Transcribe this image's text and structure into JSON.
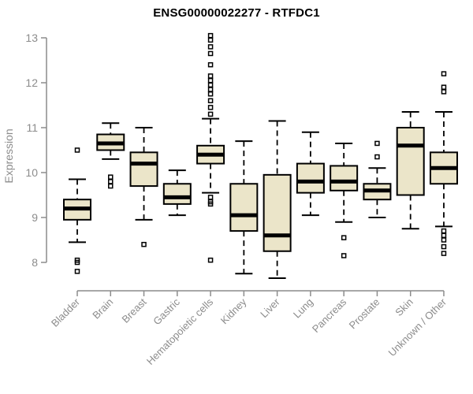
{
  "title": "ENSG00000022277 - RTFDC1",
  "colors": {
    "background": "#ffffff",
    "box_fill": "#EBE5C9",
    "box_stroke": "#000000",
    "median": "#000000",
    "whisker": "#000000",
    "outlier": "#000000",
    "axis": "#8C8C8C",
    "tick_label": "#8C8C8C",
    "title": "#000000"
  },
  "chart_data": {
    "type": "boxplot",
    "title": "ENSG00000022277 - RTFDC1",
    "xlabel": "",
    "ylabel": "Expression",
    "ylim": [
      7.5,
      13.2
    ],
    "yticks": [
      8,
      9,
      10,
      11,
      12,
      13
    ],
    "grid": false,
    "legend": "none",
    "categories": [
      "Bladder",
      "Brain",
      "Breast",
      "Gastric",
      "Hematopoietic cells",
      "Kidney",
      "Liver",
      "Lung",
      "Pancreas",
      "Prostate",
      "Skin",
      "Unknown / Other"
    ],
    "boxes": [
      {
        "category": "Bladder",
        "low": 8.45,
        "q1": 8.95,
        "median": 9.2,
        "q3": 9.4,
        "high": 9.85,
        "outliers": [
          10.5,
          8.05,
          8.0,
          7.8
        ]
      },
      {
        "category": "Brain",
        "low": 10.3,
        "q1": 10.5,
        "median": 10.65,
        "q3": 10.85,
        "high": 11.1,
        "outliers": [
          9.9,
          9.8,
          9.7
        ]
      },
      {
        "category": "Breast",
        "low": 8.95,
        "q1": 9.7,
        "median": 10.2,
        "q3": 10.45,
        "high": 11.0,
        "outliers": [
          8.4
        ]
      },
      {
        "category": "Gastric",
        "low": 9.05,
        "q1": 9.3,
        "median": 9.45,
        "q3": 9.75,
        "high": 10.05,
        "outliers": []
      },
      {
        "category": "Hematopoietic cells",
        "low": 9.55,
        "q1": 10.2,
        "median": 10.4,
        "q3": 10.6,
        "high": 11.2,
        "outliers": [
          13.05,
          12.95,
          12.8,
          12.65,
          12.4,
          12.15,
          12.05,
          11.95,
          11.85,
          11.75,
          11.6,
          11.45,
          11.3,
          9.45,
          9.35,
          9.3,
          8.05
        ]
      },
      {
        "category": "Kidney",
        "low": 7.75,
        "q1": 8.7,
        "median": 9.05,
        "q3": 9.75,
        "high": 10.7,
        "outliers": []
      },
      {
        "category": "Liver",
        "low": 7.65,
        "q1": 8.25,
        "median": 8.6,
        "q3": 9.95,
        "high": 11.15,
        "outliers": []
      },
      {
        "category": "Lung",
        "low": 9.05,
        "q1": 9.55,
        "median": 9.8,
        "q3": 10.2,
        "high": 10.9,
        "outliers": []
      },
      {
        "category": "Pancreas",
        "low": 8.9,
        "q1": 9.6,
        "median": 9.8,
        "q3": 10.15,
        "high": 10.65,
        "outliers": [
          8.55,
          8.15
        ]
      },
      {
        "category": "Prostate",
        "low": 9.0,
        "q1": 9.4,
        "median": 9.6,
        "q3": 9.75,
        "high": 10.1,
        "outliers": [
          10.65,
          10.35
        ]
      },
      {
        "category": "Skin",
        "low": 8.75,
        "q1": 9.5,
        "median": 10.6,
        "q3": 11.0,
        "high": 11.35,
        "outliers": []
      },
      {
        "category": "Unknown / Other",
        "low": 8.8,
        "q1": 9.75,
        "median": 10.1,
        "q3": 10.45,
        "high": 11.35,
        "outliers": [
          12.2,
          11.9,
          11.8,
          8.7,
          8.6,
          8.5,
          8.35,
          8.2
        ]
      }
    ]
  }
}
